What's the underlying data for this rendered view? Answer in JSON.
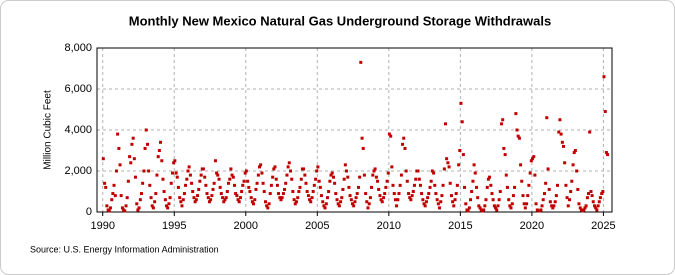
{
  "chart_data": {
    "type": "scatter",
    "title": "Monthly New Mexico Natural  Gas Underground Storage Withdrawals",
    "y_label": "Million Cubic Feet",
    "source": "Source: U.S. Energy Information Administration",
    "color": "#c00000",
    "grid": true,
    "xlim": [
      1989.6,
      2025.6
    ],
    "xticks": [
      1990,
      1995,
      2000,
      2005,
      2010,
      2015,
      2020,
      2025
    ],
    "ylim": [
      0,
      8000
    ],
    "yticks": [
      0,
      {
        "value": 2000,
        "label": "2,000"
      },
      {
        "value": 4000,
        "label": "4,000"
      },
      {
        "value": 6000,
        "label": "6,000"
      },
      {
        "value": 8000,
        "label": "8,000"
      }
    ],
    "x": [
      1990.04,
      1990.13,
      1990.21,
      1990.29,
      1990.38,
      1990.46,
      1990.54,
      1990.63,
      1990.71,
      1990.79,
      1990.88,
      1990.96,
      1991.04,
      1991.13,
      1991.21,
      1991.29,
      1991.38,
      1991.46,
      1991.54,
      1991.63,
      1991.71,
      1991.79,
      1991.88,
      1991.96,
      1992.04,
      1992.13,
      1992.21,
      1992.29,
      1992.38,
      1992.46,
      1992.54,
      1992.63,
      1992.71,
      1992.79,
      1992.88,
      1992.96,
      1993.04,
      1993.13,
      1993.21,
      1993.29,
      1993.38,
      1993.46,
      1993.54,
      1993.63,
      1993.71,
      1993.79,
      1993.88,
      1993.96,
      1994.04,
      1994.13,
      1994.21,
      1994.29,
      1994.38,
      1994.46,
      1994.54,
      1994.63,
      1994.71,
      1994.79,
      1994.88,
      1994.96,
      1995.04,
      1995.13,
      1995.21,
      1995.29,
      1995.38,
      1995.46,
      1995.54,
      1995.63,
      1995.71,
      1995.79,
      1995.88,
      1995.96,
      1996.04,
      1996.13,
      1996.21,
      1996.29,
      1996.38,
      1996.46,
      1996.54,
      1996.63,
      1996.71,
      1996.79,
      1996.88,
      1996.96,
      1997.04,
      1997.13,
      1997.21,
      1997.29,
      1997.38,
      1997.46,
      1997.54,
      1997.63,
      1997.71,
      1997.79,
      1997.88,
      1997.96,
      1998.04,
      1998.13,
      1998.21,
      1998.29,
      1998.38,
      1998.46,
      1998.54,
      1998.63,
      1998.71,
      1998.79,
      1998.88,
      1998.96,
      1999.04,
      1999.13,
      1999.21,
      1999.29,
      1999.38,
      1999.46,
      1999.54,
      1999.63,
      1999.71,
      1999.79,
      1999.88,
      1999.96,
      2000.04,
      2000.13,
      2000.21,
      2000.29,
      2000.38,
      2000.46,
      2000.54,
      2000.63,
      2000.71,
      2000.79,
      2000.88,
      2000.96,
      2001.04,
      2001.13,
      2001.21,
      2001.29,
      2001.38,
      2001.46,
      2001.54,
      2001.63,
      2001.71,
      2001.79,
      2001.88,
      2001.96,
      2002.04,
      2002.13,
      2002.21,
      2002.29,
      2002.38,
      2002.46,
      2002.54,
      2002.63,
      2002.71,
      2002.79,
      2002.88,
      2002.96,
      2003.04,
      2003.13,
      2003.21,
      2003.29,
      2003.38,
      2003.46,
      2003.54,
      2003.63,
      2003.71,
      2003.79,
      2003.88,
      2003.96,
      2004.04,
      2004.13,
      2004.21,
      2004.29,
      2004.38,
      2004.46,
      2004.54,
      2004.63,
      2004.71,
      2004.79,
      2004.88,
      2004.96,
      2005.04,
      2005.13,
      2005.21,
      2005.29,
      2005.38,
      2005.46,
      2005.54,
      2005.63,
      2005.71,
      2005.79,
      2005.88,
      2005.96,
      2006.04,
      2006.13,
      2006.21,
      2006.29,
      2006.38,
      2006.46,
      2006.54,
      2006.63,
      2006.71,
      2006.79,
      2006.88,
      2006.96,
      2007.04,
      2007.13,
      2007.21,
      2007.29,
      2007.38,
      2007.46,
      2007.54,
      2007.63,
      2007.71,
      2007.79,
      2007.88,
      2007.96,
      2008.04,
      2008.13,
      2008.21,
      2008.29,
      2008.38,
      2008.46,
      2008.54,
      2008.63,
      2008.71,
      2008.79,
      2008.88,
      2008.96,
      2009.04,
      2009.13,
      2009.21,
      2009.29,
      2009.38,
      2009.46,
      2009.54,
      2009.63,
      2009.71,
      2009.79,
      2009.88,
      2009.96,
      2010.04,
      2010.13,
      2010.21,
      2010.29,
      2010.38,
      2010.46,
      2010.54,
      2010.63,
      2010.71,
      2010.79,
      2010.88,
      2010.96,
      2011.04,
      2011.13,
      2011.21,
      2011.29,
      2011.38,
      2011.46,
      2011.54,
      2011.63,
      2011.71,
      2011.79,
      2011.88,
      2011.96,
      2012.04,
      2012.13,
      2012.21,
      2012.29,
      2012.38,
      2012.46,
      2012.54,
      2012.63,
      2012.71,
      2012.79,
      2012.88,
      2012.96,
      2013.04,
      2013.13,
      2013.21,
      2013.29,
      2013.38,
      2013.46,
      2013.54,
      2013.63,
      2013.71,
      2013.79,
      2013.88,
      2013.96,
      2014.04,
      2014.13,
      2014.21,
      2014.29,
      2014.38,
      2014.46,
      2014.54,
      2014.63,
      2014.71,
      2014.79,
      2014.88,
      2014.96,
      2015.04,
      2015.13,
      2015.21,
      2015.29,
      2015.38,
      2015.46,
      2015.54,
      2015.63,
      2015.71,
      2015.79,
      2015.88,
      2015.96,
      2016.04,
      2016.13,
      2016.21,
      2016.29,
      2016.38,
      2016.46,
      2016.54,
      2016.63,
      2016.71,
      2016.79,
      2016.88,
      2016.96,
      2017.04,
      2017.13,
      2017.21,
      2017.29,
      2017.38,
      2017.46,
      2017.54,
      2017.63,
      2017.71,
      2017.79,
      2017.88,
      2017.96,
      2018.04,
      2018.13,
      2018.21,
      2018.29,
      2018.38,
      2018.46,
      2018.54,
      2018.63,
      2018.71,
      2018.79,
      2018.88,
      2018.96,
      2019.04,
      2019.13,
      2019.21,
      2019.29,
      2019.38,
      2019.46,
      2019.54,
      2019.63,
      2019.71,
      2019.79,
      2019.88,
      2019.96,
      2020.04,
      2020.13,
      2020.21,
      2020.29,
      2020.38,
      2020.46,
      2020.54,
      2020.63,
      2020.71,
      2020.79,
      2020.88,
      2020.96,
      2021.04,
      2021.13,
      2021.21,
      2021.29,
      2021.38,
      2021.46,
      2021.54,
      2021.63,
      2021.71,
      2021.79,
      2021.88,
      2021.96,
      2022.04,
      2022.13,
      2022.21,
      2022.29,
      2022.38,
      2022.46,
      2022.54,
      2022.63,
      2022.71,
      2022.79,
      2022.88,
      2022.96,
      2023.04,
      2023.13,
      2023.21,
      2023.29,
      2023.38,
      2023.46,
      2023.54,
      2023.63,
      2023.71,
      2023.79,
      2023.88,
      2023.96,
      2024.04,
      2024.13,
      2024.21,
      2024.29,
      2024.38,
      2024.46,
      2024.54,
      2024.63,
      2024.71,
      2024.79,
      2024.88,
      2024.96,
      2025.04,
      2025.13,
      2025.21,
      2025.29
    ],
    "values": [
      2600,
      1400,
      1200,
      300,
      100,
      50,
      200,
      600,
      900,
      1300,
      800,
      2000,
      3800,
      3100,
      2300,
      800,
      200,
      100,
      50,
      300,
      700,
      1500,
      2700,
      2400,
      3300,
      3600,
      2600,
      1700,
      400,
      100,
      200,
      600,
      900,
      1400,
      2000,
      3100,
      4000,
      3300,
      2000,
      1300,
      700,
      300,
      200,
      500,
      900,
      1800,
      2700,
      3000,
      3400,
      2500,
      1600,
      1000,
      600,
      300,
      200,
      400,
      700,
      1400,
      1900,
      2400,
      2500,
      1900,
      1700,
      1200,
      700,
      500,
      300,
      600,
      900,
      1300,
      1600,
      2000,
      2200,
      1800,
      1400,
      1000,
      700,
      500,
      600,
      800,
      1100,
      1500,
      1800,
      2100,
      2100,
      1700,
      1300,
      900,
      700,
      500,
      600,
      800,
      1100,
      1400,
      2500,
      1900,
      1800,
      1600,
      1200,
      900,
      700,
      500,
      600,
      700,
      1000,
      1400,
      1600,
      2100,
      1800,
      1700,
      1300,
      900,
      800,
      600,
      500,
      700,
      1000,
      1300,
      1500,
      1900,
      2000,
      1500,
      1200,
      1000,
      700,
      500,
      400,
      600,
      1100,
      1400,
      1800,
      2200,
      2300,
      1900,
      1400,
      1000,
      500,
      300,
      200,
      400,
      900,
      1300,
      1700,
      2100,
      2200,
      1600,
      1300,
      900,
      700,
      600,
      700,
      900,
      1100,
      1400,
      1800,
      2200,
      2400,
      2000,
      1600,
      1000,
      600,
      400,
      500,
      700,
      1000,
      1200,
      1600,
      2100,
      2100,
      1800,
      1400,
      1000,
      800,
      600,
      500,
      700,
      1000,
      1300,
      1600,
      2000,
      2200,
      1500,
      1200,
      800,
      500,
      300,
      200,
      400,
      700,
      1000,
      1500,
      1800,
      1900,
      1700,
      1400,
      900,
      600,
      400,
      300,
      500,
      700,
      1100,
      1600,
      2300,
      2000,
      1700,
      1200,
      800,
      600,
      400,
      300,
      500,
      700,
      900,
      1200,
      1700,
      7300,
      3600,
      3100,
      1800,
      900,
      500,
      200,
      400,
      700,
      1200,
      1800,
      2000,
      2100,
      1700,
      1500,
      1100,
      800,
      600,
      500,
      700,
      900,
      1200,
      1500,
      1900,
      3800,
      3700,
      2200,
      1300,
      900,
      600,
      300,
      600,
      900,
      1300,
      1800,
      3300,
      3600,
      3100,
      2000,
      1500,
      900,
      700,
      600,
      800,
      1000,
      1300,
      1600,
      2000,
      2000,
      1600,
      1300,
      900,
      600,
      400,
      300,
      500,
      700,
      900,
      1200,
      1500,
      2000,
      1900,
      1300,
      900,
      600,
      400,
      200,
      500,
      800,
      1300,
      2100,
      4300,
      2600,
      2400,
      2200,
      1400,
      800,
      500,
      300,
      600,
      900,
      1300,
      2300,
      3000,
      5300,
      4400,
      2800,
      1200,
      400,
      100,
      50,
      200,
      600,
      1000,
      1500,
      2300,
      1900,
      1200,
      700,
      300,
      200,
      100,
      50,
      100,
      300,
      600,
      1200,
      1600,
      1700,
      1300,
      900,
      600,
      300,
      200,
      100,
      300,
      600,
      1000,
      4300,
      4500,
      3100,
      2800,
      1800,
      1200,
      600,
      300,
      200,
      400,
      800,
      1200,
      4800,
      4000,
      3700,
      3600,
      2300,
      1500,
      800,
      400,
      200,
      400,
      800,
      1300,
      1900,
      2500,
      2600,
      2700,
      1800,
      400,
      100,
      50,
      50,
      100,
      300,
      600,
      900,
      1400,
      4600,
      2100,
      1100,
      500,
      300,
      200,
      300,
      500,
      800,
      1300,
      3900,
      4500,
      3800,
      3400,
      3200,
      2400,
      1300,
      700,
      300,
      600,
      1000,
      1500,
      2300,
      2900,
      3000,
      2000,
      1100,
      400,
      200,
      100,
      50,
      100,
      200,
      300,
      700,
      900,
      3900,
      1000,
      800,
      500,
      300,
      200,
      100,
      300,
      500,
      700,
      900,
      1000,
      6600,
      4900,
      2900,
      2800
    ]
  }
}
